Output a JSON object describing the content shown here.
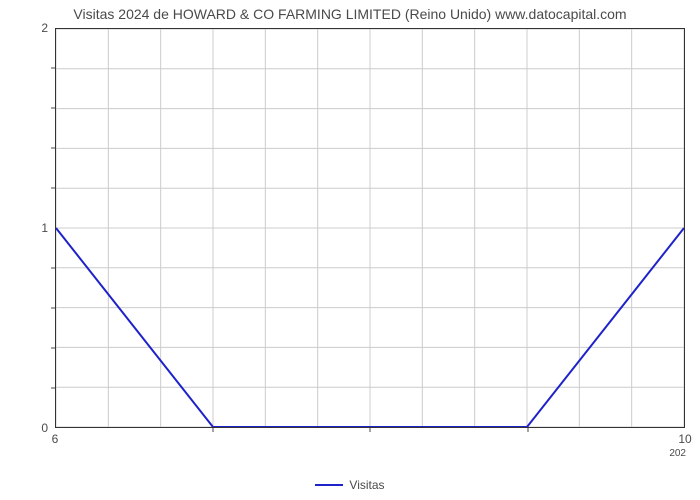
{
  "chart": {
    "type": "line",
    "title": "Visitas 2024 de HOWARD & CO FARMING LIMITED (Reino Unido) www.datocapital.com",
    "title_fontsize": 14,
    "title_color": "#4a4a4a",
    "background_color": "#ffffff",
    "plot_border_color": "#333333",
    "grid_color": "#cccccc",
    "grid_line_width": 1,
    "line_color": "#1e22c9",
    "line_width": 2,
    "y_axis": {
      "min": 0,
      "max": 2,
      "major_ticks": [
        0,
        1,
        2
      ],
      "minor_step": 0.2,
      "label_fontsize": 12,
      "label_color": "#4a4a4a"
    },
    "x_axis": {
      "min": 6,
      "max": 10,
      "major_ticks": [
        "6",
        "10"
      ],
      "sub_label": "202",
      "minor_positions": [
        7,
        8,
        9
      ],
      "label_fontsize": 12,
      "label_color": "#4a4a4a"
    },
    "data_points": [
      {
        "x": 6,
        "y": 1
      },
      {
        "x": 7,
        "y": 0
      },
      {
        "x": 9,
        "y": 0
      },
      {
        "x": 10,
        "y": 1
      }
    ],
    "grid_vlines_count": 13,
    "grid_hlines_count": 11,
    "legend": {
      "label": "Visitas",
      "line_color": "#1e22c9",
      "label_fontsize": 12,
      "label_color": "#4a4a4a"
    }
  }
}
